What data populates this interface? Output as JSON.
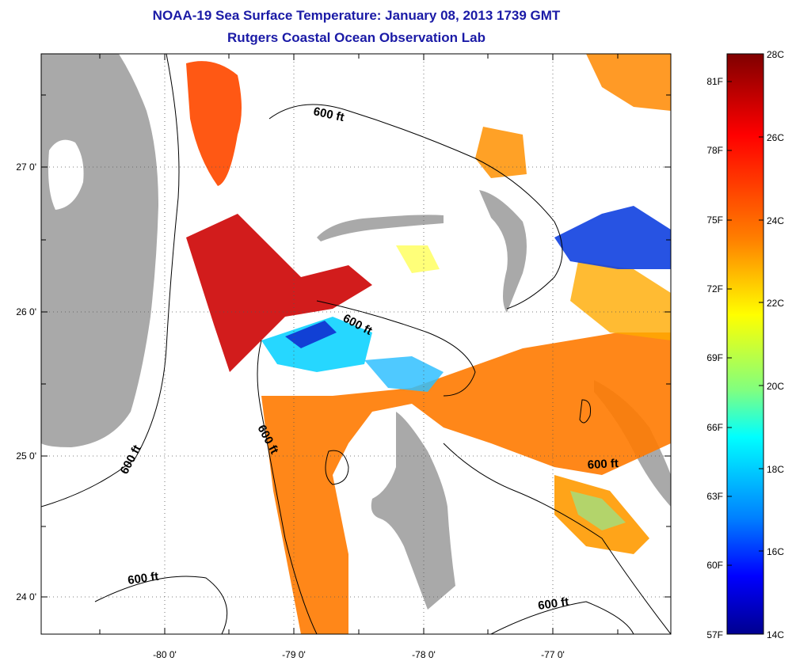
{
  "header": {
    "title": "NOAA-19 Sea Surface Temperature:  January 08, 2013 1739 GMT",
    "subtitle": "Rutgers Coastal Ocean Observation Lab"
  },
  "map": {
    "lon_ticks": [
      "-80 0'",
      "-79 0'",
      "-78 0'",
      "-77 0'"
    ],
    "lat_ticks": [
      "27 0'",
      "26 0'",
      "25 0'",
      "24 0'"
    ],
    "contour_label": "600 ft",
    "land_color": "#a9a9a9"
  },
  "colorbar": {
    "celsius": [
      "28C",
      "26C",
      "24C",
      "22C",
      "20C",
      "18C",
      "16C",
      "14C"
    ],
    "fahrenheit": [
      "81F",
      "78F",
      "75F",
      "72F",
      "69F",
      "66F",
      "63F",
      "60F",
      "57F"
    ],
    "colors": [
      "#7f0000",
      "#ff0000",
      "#ff8000",
      "#ffff00",
      "#80ff80",
      "#00ffff",
      "#0080ff",
      "#0000ff",
      "#00008f"
    ]
  }
}
